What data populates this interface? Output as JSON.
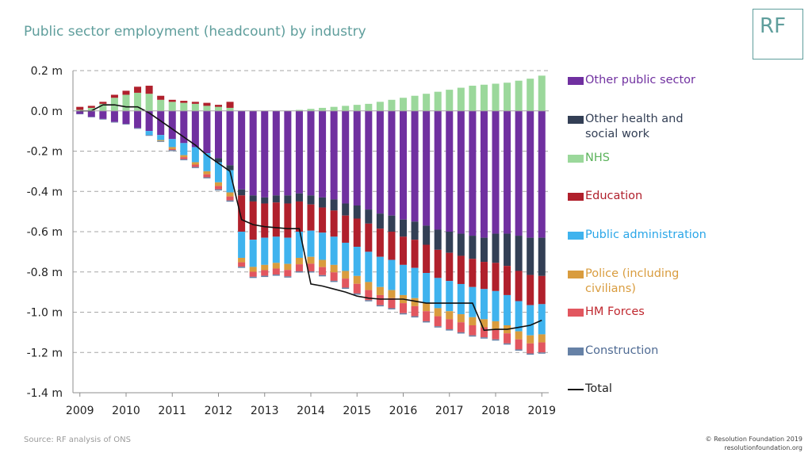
{
  "header": {
    "title": "Public sector employment (headcount) by industry",
    "logo_text": "RF"
  },
  "footer": {
    "source": "Source: RF analysis of ONS",
    "copyright_line1": "© Resolution Foundation 2019",
    "copyright_line2": "resolutionfoundation.org"
  },
  "colors": {
    "Other public sector": "#7030a0",
    "Other health and social work": "#333f55",
    "NHS": "#9bd89b",
    "Education": "#b0202c",
    "Public administration": "#3fb3ee",
    "Police (including civilians)": "#d99c3e",
    "HM Forces": "#e2565f",
    "Construction": "#6681a6",
    "Total": "#111111"
  },
  "chart_data": {
    "type": "bar",
    "stacked": true,
    "ylim": [
      -1.4,
      0.2
    ],
    "yticks": [
      0.2,
      0.0,
      -0.2,
      -0.4,
      -0.6,
      -0.8,
      -1.0,
      -1.2,
      -1.4
    ],
    "ytick_labels": [
      "0.2  m",
      "0.0  m",
      "-0.2  m",
      "-0.4  m",
      "-0.6  m",
      "-0.8  m",
      "-1.0  m",
      "-1.2  m",
      "-1.4  m"
    ],
    "xtick_labels": [
      "2009",
      "2010",
      "2011",
      "2012",
      "2013",
      "2014",
      "2015",
      "2016",
      "2017",
      "2018",
      "2019"
    ],
    "grid": "horizontal dashed",
    "legend_position": "right",
    "categories": [
      "2009 Q1",
      "2009 Q2",
      "2009 Q3",
      "2009 Q4",
      "2010 Q1",
      "2010 Q2",
      "2010 Q3",
      "2010 Q4",
      "2011 Q1",
      "2011 Q2",
      "2011 Q3",
      "2011 Q4",
      "2012 Q1",
      "2012 Q2",
      "2012 Q3",
      "2012 Q4",
      "2013 Q1",
      "2013 Q2",
      "2013 Q3",
      "2013 Q4",
      "2014 Q1",
      "2014 Q2",
      "2014 Q3",
      "2014 Q4",
      "2015 Q1",
      "2015 Q2",
      "2015 Q3",
      "2015 Q4",
      "2016 Q1",
      "2016 Q2",
      "2016 Q3",
      "2016 Q4",
      "2017 Q1",
      "2017 Q2",
      "2017 Q3",
      "2017 Q4",
      "2018 Q1",
      "2018 Q2",
      "2018 Q3",
      "2018 Q4",
      "2019 Q1"
    ],
    "series": [
      {
        "name": "Other public sector",
        "values": [
          -0.015,
          -0.03,
          -0.04,
          -0.055,
          -0.065,
          -0.085,
          -0.1,
          -0.12,
          -0.14,
          -0.16,
          -0.18,
          -0.21,
          -0.235,
          -0.27,
          -0.39,
          -0.42,
          -0.43,
          -0.42,
          -0.42,
          -0.41,
          -0.42,
          -0.43,
          -0.44,
          -0.46,
          -0.47,
          -0.49,
          -0.51,
          -0.52,
          -0.54,
          -0.55,
          -0.57,
          -0.59,
          -0.6,
          -0.61,
          -0.62,
          -0.63,
          -0.61,
          -0.61,
          -0.62,
          -0.63,
          -0.63
        ]
      },
      {
        "name": "Other health and social work",
        "values": [
          0,
          0,
          0,
          0,
          0,
          0,
          0,
          0,
          0,
          0,
          0,
          0,
          -0.02,
          -0.025,
          -0.03,
          -0.03,
          -0.03,
          -0.035,
          -0.04,
          -0.04,
          -0.045,
          -0.05,
          -0.055,
          -0.06,
          -0.065,
          -0.07,
          -0.075,
          -0.08,
          -0.085,
          -0.09,
          -0.095,
          -0.1,
          -0.105,
          -0.11,
          -0.115,
          -0.12,
          -0.145,
          -0.16,
          -0.175,
          -0.185,
          -0.19
        ]
      },
      {
        "name": "NHS",
        "values": [
          0.005,
          0.015,
          0.035,
          0.065,
          0.08,
          0.09,
          0.085,
          0.055,
          0.045,
          0.04,
          0.035,
          0.025,
          0.02,
          0.015,
          0.0,
          0.0,
          0.0,
          0.0,
          0.0,
          0.005,
          0.01,
          0.015,
          0.02,
          0.025,
          0.03,
          0.035,
          0.045,
          0.055,
          0.065,
          0.075,
          0.085,
          0.095,
          0.105,
          0.115,
          0.125,
          0.13,
          0.135,
          0.14,
          0.15,
          0.16,
          0.175
        ]
      },
      {
        "name": "Education",
        "values": [
          0.015,
          0.01,
          0.01,
          0.015,
          0.02,
          0.03,
          0.04,
          0.02,
          0.01,
          0.01,
          0.01,
          0.015,
          0.01,
          0.03,
          -0.18,
          -0.19,
          -0.17,
          -0.17,
          -0.17,
          -0.15,
          -0.13,
          -0.125,
          -0.13,
          -0.135,
          -0.14,
          -0.14,
          -0.14,
          -0.14,
          -0.14,
          -0.14,
          -0.14,
          -0.14,
          -0.14,
          -0.14,
          -0.14,
          -0.135,
          -0.14,
          -0.145,
          -0.15,
          -0.15,
          -0.14
        ]
      },
      {
        "name": "Public administration",
        "values": [
          0,
          0,
          0,
          0,
          0,
          0,
          -0.02,
          -0.025,
          -0.04,
          -0.06,
          -0.075,
          -0.09,
          -0.1,
          -0.11,
          -0.13,
          -0.135,
          -0.135,
          -0.13,
          -0.13,
          -0.13,
          -0.13,
          -0.135,
          -0.14,
          -0.14,
          -0.145,
          -0.15,
          -0.15,
          -0.15,
          -0.15,
          -0.15,
          -0.15,
          -0.15,
          -0.15,
          -0.15,
          -0.15,
          -0.15,
          -0.15,
          -0.15,
          -0.15,
          -0.15,
          -0.15
        ]
      },
      {
        "name": "Police (including civilians)",
        "values": [
          0,
          0,
          0,
          0,
          0,
          0,
          0,
          -0.005,
          -0.01,
          -0.01,
          -0.012,
          -0.015,
          -0.018,
          -0.02,
          -0.022,
          -0.024,
          -0.026,
          -0.028,
          -0.03,
          -0.032,
          -0.034,
          -0.036,
          -0.037,
          -0.038,
          -0.039,
          -0.04,
          -0.04,
          -0.04,
          -0.04,
          -0.04,
          -0.04,
          -0.04,
          -0.04,
          -0.04,
          -0.04,
          -0.04,
          -0.04,
          -0.04,
          -0.04,
          -0.04,
          -0.04
        ]
      },
      {
        "name": "HM Forces",
        "values": [
          0,
          0,
          0,
          0,
          0,
          0,
          0,
          0,
          -0.005,
          -0.01,
          -0.012,
          -0.015,
          -0.017,
          -0.02,
          -0.022,
          -0.025,
          -0.028,
          -0.03,
          -0.032,
          -0.035,
          -0.038,
          -0.04,
          -0.042,
          -0.045,
          -0.048,
          -0.05,
          -0.05,
          -0.05,
          -0.05,
          -0.05,
          -0.05,
          -0.05,
          -0.05,
          -0.05,
          -0.05,
          -0.05,
          -0.05,
          -0.05,
          -0.05,
          -0.05,
          -0.05
        ]
      },
      {
        "name": "Construction",
        "values": [
          -0.002,
          -0.002,
          -0.003,
          -0.003,
          -0.003,
          -0.004,
          -0.004,
          -0.004,
          -0.005,
          -0.005,
          -0.005,
          -0.005,
          -0.005,
          -0.006,
          -0.006,
          -0.006,
          -0.006,
          -0.006,
          -0.006,
          -0.006,
          -0.006,
          -0.006,
          -0.006,
          -0.006,
          -0.006,
          -0.006,
          -0.006,
          -0.006,
          -0.006,
          -0.006,
          -0.006,
          -0.006,
          -0.006,
          -0.006,
          -0.006,
          -0.006,
          -0.006,
          -0.006,
          -0.006,
          -0.006,
          -0.006
        ]
      }
    ],
    "line": {
      "name": "Total",
      "values": [
        0.0,
        0.0,
        0.03,
        0.03,
        0.02,
        0.02,
        -0.01,
        -0.05,
        -0.09,
        -0.13,
        -0.17,
        -0.22,
        -0.26,
        -0.3,
        -0.54,
        -0.565,
        -0.575,
        -0.58,
        -0.585,
        -0.585,
        -0.86,
        -0.87,
        -0.885,
        -0.9,
        -0.92,
        -0.93,
        -0.935,
        -0.935,
        -0.935,
        -0.945,
        -0.955,
        -0.955,
        -0.955,
        -0.955,
        -0.955,
        -1.09,
        -1.085,
        -1.085,
        -1.075,
        -1.065,
        -1.04
      ]
    }
  }
}
